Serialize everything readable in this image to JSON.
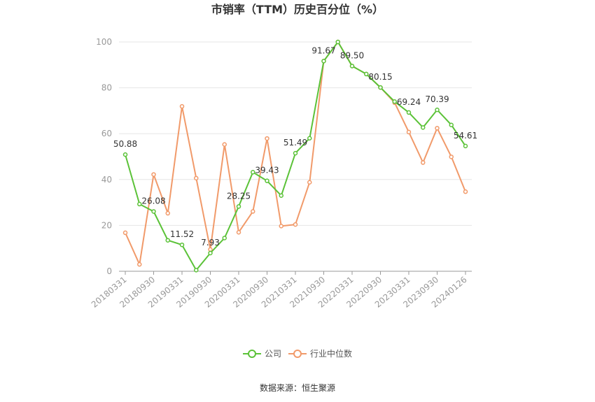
{
  "chart_data": {
    "type": "line",
    "title": "市销率（TTM）历史百分位（%）",
    "source": "数据来源：恒生聚源",
    "ylim": [
      0,
      100
    ],
    "yticks": [
      0,
      20,
      40,
      60,
      80,
      100
    ],
    "grid": true,
    "legend_position": "bottom",
    "x_tick_labels": [
      "20180331",
      "20180930",
      "20190331",
      "20190930",
      "20200331",
      "20200930",
      "20210331",
      "20210930",
      "20220331",
      "20220930",
      "20230331",
      "20230930",
      "20240126"
    ],
    "series": [
      {
        "name": "公司",
        "color": "#5bc238",
        "values": [
          50.88,
          29.3,
          26.08,
          13.5,
          11.52,
          0.5,
          7.93,
          14.5,
          28.25,
          43.2,
          39.43,
          33.0,
          51.49,
          58.0,
          91.67,
          100,
          89.5,
          86.0,
          80.15,
          74.0,
          69.24,
          62.7,
          70.39,
          63.8,
          54.61
        ]
      },
      {
        "name": "行业中位数",
        "color": "#f19a6a",
        "values": [
          16.8,
          3.0,
          42.2,
          25.3,
          71.9,
          40.6,
          9.5,
          55.3,
          17.0,
          26.1,
          57.9,
          19.7,
          20.4,
          38.8,
          91.67,
          100,
          89.5,
          86.0,
          80.15,
          73.5,
          60.7,
          47.4,
          62.4,
          49.9,
          34.7
        ]
      }
    ],
    "data_labels": [
      {
        "index": 0,
        "text": "50.88"
      },
      {
        "index": 2,
        "text": "26.08"
      },
      {
        "index": 4,
        "text": "11.52"
      },
      {
        "index": 6,
        "text": "7.93"
      },
      {
        "index": 8,
        "text": "28.25"
      },
      {
        "index": 10,
        "text": "39.43"
      },
      {
        "index": 12,
        "text": "51.49"
      },
      {
        "index": 14,
        "text": "91.67"
      },
      {
        "index": 16,
        "text": "89.50"
      },
      {
        "index": 18,
        "text": "80.15"
      },
      {
        "index": 20,
        "text": "69.24"
      },
      {
        "index": 22,
        "text": "70.39"
      },
      {
        "index": 24,
        "text": "54.61"
      }
    ]
  }
}
